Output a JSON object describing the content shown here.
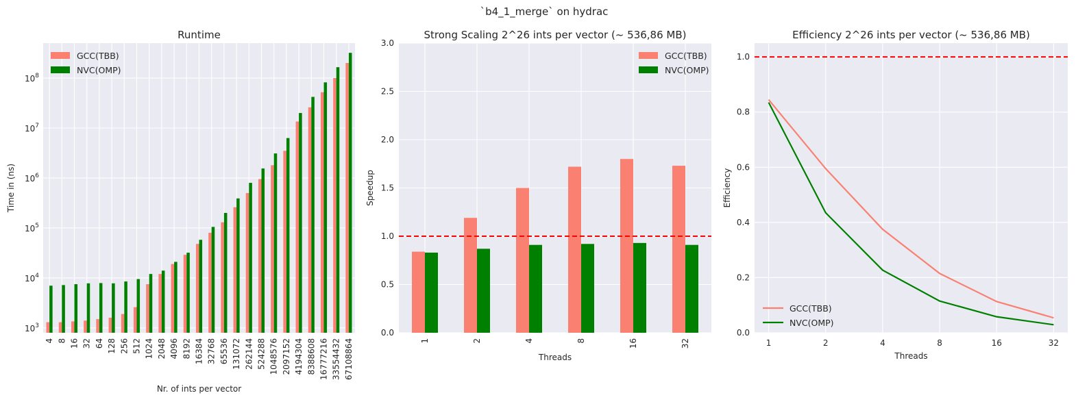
{
  "suptitle": "`b4_1_merge` on hydrac",
  "colors": {
    "gcc": "#fa8072",
    "nvc": "#008000",
    "ref": "#ff0000",
    "bg": "#eaeaf2",
    "grid": "#ffffff"
  },
  "chart_data": [
    {
      "type": "bar",
      "title": "Runtime",
      "xlabel": "Nr. of ints per vector",
      "ylabel": "Time in (ns)",
      "yscale": "log",
      "ylim": [
        800,
        500000000
      ],
      "ytick_values": [
        1000,
        10000,
        100000,
        1000000,
        10000000,
        100000000
      ],
      "ytick_labels": [
        {
          "base": "10",
          "exp": "3"
        },
        {
          "base": "10",
          "exp": "4"
        },
        {
          "base": "10",
          "exp": "5"
        },
        {
          "base": "10",
          "exp": "6"
        },
        {
          "base": "10",
          "exp": "7"
        },
        {
          "base": "10",
          "exp": "8"
        }
      ],
      "categories": [
        "4",
        "8",
        "16",
        "32",
        "64",
        "128",
        "256",
        "512",
        "1024",
        "2048",
        "4096",
        "8192",
        "16384",
        "32768",
        "65536",
        "131072",
        "262144",
        "524288",
        "1048576",
        "2097152",
        "4194304",
        "8388608",
        "16777216",
        "33554432",
        "67108864"
      ],
      "series": [
        {
          "name": "GCC(TBB)",
          "color": "#fa8072",
          "values": [
            1300,
            1300,
            1350,
            1400,
            1500,
            1600,
            1900,
            2600,
            7500,
            12000,
            19000,
            29000,
            48000,
            80000,
            130000,
            260000,
            500000,
            950000,
            1800000,
            3500000,
            13500000,
            26000000,
            52000000,
            100000000,
            200000000
          ]
        },
        {
          "name": "NVC(OMP)",
          "color": "#008000",
          "values": [
            7000,
            7200,
            7500,
            7800,
            7900,
            7800,
            8500,
            9500,
            12000,
            14000,
            21000,
            32000,
            58000,
            105000,
            200000,
            390000,
            800000,
            1550000,
            3100000,
            6300000,
            20000000,
            42000000,
            82000000,
            165000000,
            320000000
          ]
        }
      ],
      "legend": "upper-left",
      "grid": true
    },
    {
      "type": "bar",
      "title": "Strong Scaling 2^26 ints per vector (~ 536,86 MB)",
      "xlabel": "Threads",
      "ylabel": "Speedup",
      "ylim": [
        0,
        3.0
      ],
      "yticks": [
        "0.0",
        "0.5",
        "1.0",
        "1.5",
        "2.0",
        "2.5",
        "3.0"
      ],
      "categories": [
        "1",
        "2",
        "4",
        "8",
        "16",
        "32"
      ],
      "series": [
        {
          "name": "GCC(TBB)",
          "color": "#fa8072",
          "values": [
            0.84,
            1.19,
            1.5,
            1.72,
            1.8,
            1.73
          ]
        },
        {
          "name": "NVC(OMP)",
          "color": "#008000",
          "values": [
            0.83,
            0.87,
            0.91,
            0.92,
            0.93,
            0.91
          ]
        }
      ],
      "reference_line": 1.0,
      "legend": "upper-right",
      "grid": true
    },
    {
      "type": "line",
      "title": "Efficiency 2^26 ints per vector (~ 536,86 MB)",
      "xlabel": "Threads",
      "ylabel": "Efficiency",
      "xscale": "log2",
      "x": [
        1,
        2,
        4,
        8,
        16,
        32
      ],
      "xticks": [
        "1",
        "2",
        "4",
        "8",
        "16",
        "32"
      ],
      "ylim": [
        0,
        1.05
      ],
      "yticks": [
        "0.0",
        "0.2",
        "0.4",
        "0.6",
        "0.8",
        "1.0"
      ],
      "series": [
        {
          "name": "GCC(TBB)",
          "color": "#fa8072",
          "values": [
            0.845,
            0.595,
            0.375,
            0.215,
            0.113,
            0.054
          ]
        },
        {
          "name": "NVC(OMP)",
          "color": "#008000",
          "values": [
            0.835,
            0.435,
            0.227,
            0.115,
            0.058,
            0.029
          ]
        }
      ],
      "reference_line": 1.0,
      "legend": "lower-left",
      "grid": true
    }
  ]
}
